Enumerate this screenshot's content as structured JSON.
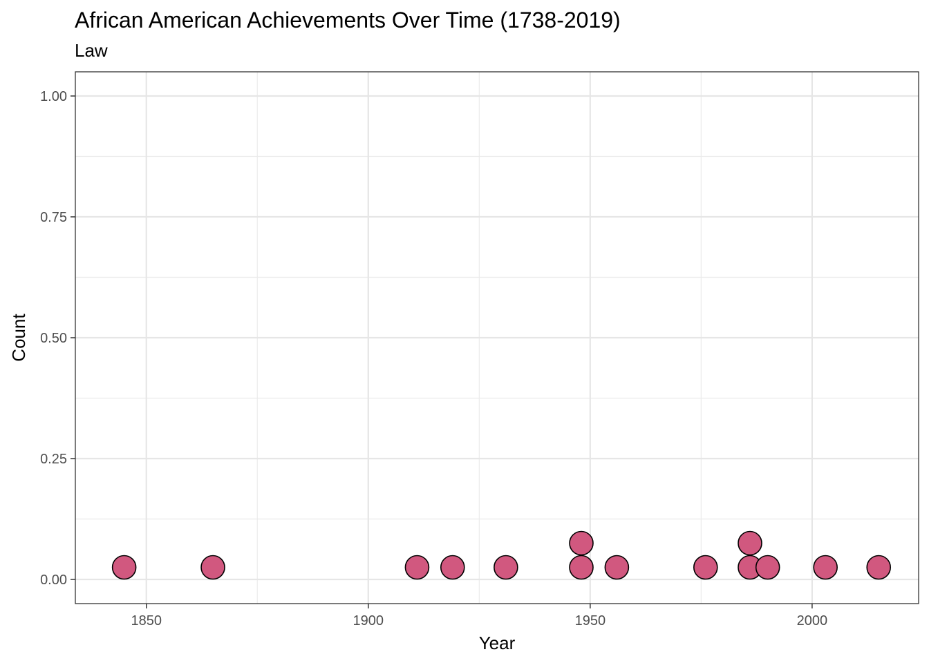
{
  "chart_data": {
    "type": "scatter",
    "title": "African American Achievements Over Time (1738-2019)",
    "subtitle": "Law",
    "xlabel": "Year",
    "ylabel": "Count",
    "xlim": [
      1834,
      2024
    ],
    "ylim": [
      -0.05,
      1.05
    ],
    "x_ticks": [
      1850,
      1900,
      1950,
      2000
    ],
    "x_tick_labels": [
      "1850",
      "1900",
      "1950",
      "2000"
    ],
    "y_ticks": [
      0,
      0.25,
      0.5,
      0.75,
      1
    ],
    "y_tick_labels": [
      "0.00",
      "0.25",
      "0.50",
      "0.75",
      "1.00"
    ],
    "grid": true,
    "legend": "none",
    "point_color": "#D1587F",
    "point_outline": "#000000",
    "points": [
      {
        "x": 1845,
        "y": 0.025
      },
      {
        "x": 1865,
        "y": 0.025
      },
      {
        "x": 1911,
        "y": 0.025
      },
      {
        "x": 1919,
        "y": 0.025
      },
      {
        "x": 1931,
        "y": 0.025
      },
      {
        "x": 1948,
        "y": 0.025
      },
      {
        "x": 1948,
        "y": 0.075
      },
      {
        "x": 1956,
        "y": 0.025
      },
      {
        "x": 1976,
        "y": 0.025
      },
      {
        "x": 1986,
        "y": 0.025
      },
      {
        "x": 1986,
        "y": 0.075
      },
      {
        "x": 1990,
        "y": 0.025
      },
      {
        "x": 2003,
        "y": 0.025
      },
      {
        "x": 2015,
        "y": 0.025
      }
    ]
  }
}
